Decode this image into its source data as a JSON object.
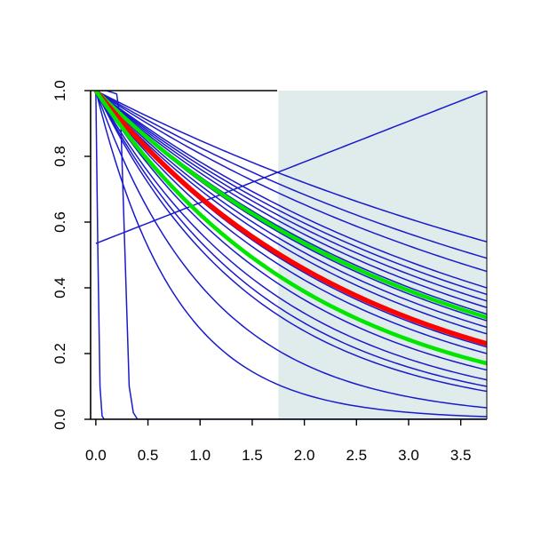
{
  "chart_data": {
    "type": "line",
    "title": "",
    "xlabel": "",
    "ylabel": "",
    "xlim": [
      -0.05,
      3.75
    ],
    "ylim": [
      0.0,
      1.0
    ],
    "x_ticks": [
      0.0,
      0.5,
      1.0,
      1.5,
      2.0,
      2.5,
      3.0,
      3.5
    ],
    "x_tick_labels": [
      "0.0",
      "0.5",
      "1.0",
      "1.5",
      "2.0",
      "2.5",
      "3.0",
      "3.5"
    ],
    "y_ticks": [
      0.0,
      0.2,
      0.4,
      0.6,
      0.8,
      1.0
    ],
    "y_tick_labels": [
      "0.0",
      "0.2",
      "0.4",
      "0.6",
      "0.8",
      "1.0"
    ],
    "grid": false,
    "legend": "none",
    "shaded_region": {
      "x_from": 1.75,
      "x_to": 3.75,
      "color": "#e0ecec"
    },
    "colors": {
      "curves": "#1a1acc",
      "highlight": "#ff0000",
      "bounds": "#00e600",
      "frame": "#000000"
    },
    "series": [
      {
        "color": "#1a1acc",
        "width": 1.5,
        "x": [
          0,
          3.75
        ],
        "y": [
          1.0,
          0.54
        ]
      },
      {
        "color": "#1a1acc",
        "width": 1.5,
        "x": [
          0,
          3.75
        ],
        "y": [
          1.0,
          0.49
        ]
      },
      {
        "color": "#1a1acc",
        "width": 1.5,
        "x": [
          0,
          3.75
        ],
        "y": [
          1.0,
          0.45
        ]
      },
      {
        "color": "#1a1acc",
        "width": 1.5,
        "x": [
          0,
          3.75
        ],
        "y": [
          1.0,
          0.4
        ]
      },
      {
        "color": "#1a1acc",
        "width": 1.5,
        "x": [
          0,
          3.75
        ],
        "y": [
          1.0,
          0.38
        ]
      },
      {
        "color": "#1a1acc",
        "width": 1.5,
        "x": [
          0,
          3.75
        ],
        "y": [
          1.0,
          0.36
        ]
      },
      {
        "color": "#1a1acc",
        "width": 1.5,
        "x": [
          0,
          3.75
        ],
        "y": [
          1.0,
          0.34
        ]
      },
      {
        "color": "#1a1acc",
        "width": 1.5,
        "x": [
          0,
          3.75
        ],
        "y": [
          1.0,
          0.32
        ]
      },
      {
        "color": "#1a1acc",
        "width": 1.5,
        "x": [
          0,
          3.75
        ],
        "y": [
          1.0,
          0.3
        ]
      },
      {
        "color": "#1a1acc",
        "width": 1.5,
        "x": [
          0,
          3.75
        ],
        "y": [
          1.0,
          0.28
        ]
      },
      {
        "color": "#1a1acc",
        "width": 1.5,
        "x": [
          0,
          3.75
        ],
        "y": [
          1.0,
          0.26
        ]
      },
      {
        "color": "#1a1acc",
        "width": 1.5,
        "x": [
          0,
          3.75
        ],
        "y": [
          1.0,
          0.22
        ]
      },
      {
        "color": "#1a1acc",
        "width": 1.5,
        "x": [
          0,
          3.75
        ],
        "y": [
          1.0,
          0.2
        ]
      },
      {
        "color": "#1a1acc",
        "width": 1.5,
        "x": [
          0,
          3.75
        ],
        "y": [
          1.0,
          0.15
        ]
      },
      {
        "color": "#1a1acc",
        "width": 1.5,
        "x": [
          0,
          3.75
        ],
        "y": [
          1.0,
          0.12
        ]
      },
      {
        "color": "#1a1acc",
        "width": 1.5,
        "x": [
          0,
          3.75
        ],
        "y": [
          1.0,
          0.1
        ]
      },
      {
        "color": "#1a1acc",
        "width": 1.5,
        "x": [
          0,
          3.75
        ],
        "y": [
          1.0,
          0.085
        ]
      },
      {
        "color": "#1a1acc",
        "width": 1.5,
        "x": [
          0,
          3.75
        ],
        "y": [
          1.0,
          0.035
        ]
      },
      {
        "color": "#1a1acc",
        "width": 1.5,
        "x": [
          0,
          3.75
        ],
        "y": [
          1.0,
          0.008
        ]
      },
      {
        "color": "#1a1acc",
        "width": 1.5,
        "x": [
          0,
          3.75
        ],
        "y": [
          0.535,
          1.0
        ]
      },
      {
        "color": "#1a1acc",
        "width": 1.5,
        "x": [
          0,
          0.02,
          0.04,
          0.06,
          0.08,
          3.75
        ],
        "y": [
          1.0,
          0.5,
          0.1,
          0.01,
          0.0,
          0.0
        ]
      },
      {
        "color": "#1a1acc",
        "width": 1.5,
        "x": [
          0,
          0.1,
          0.2,
          0.24,
          0.28,
          0.32,
          0.36,
          0.4,
          3.75
        ],
        "y": [
          1.0,
          1.0,
          0.99,
          0.9,
          0.5,
          0.1,
          0.02,
          0.0,
          0.0
        ]
      },
      {
        "color": "#00e600",
        "width": 4.5,
        "x": [
          0,
          3.75
        ],
        "y": [
          1.0,
          0.31
        ]
      },
      {
        "color": "#ff0000",
        "width": 5.5,
        "x": [
          0,
          3.75
        ],
        "y": [
          1.0,
          0.23
        ]
      },
      {
        "color": "#00e600",
        "width": 4.5,
        "x": [
          0,
          3.75
        ],
        "y": [
          1.0,
          0.17
        ]
      }
    ]
  }
}
